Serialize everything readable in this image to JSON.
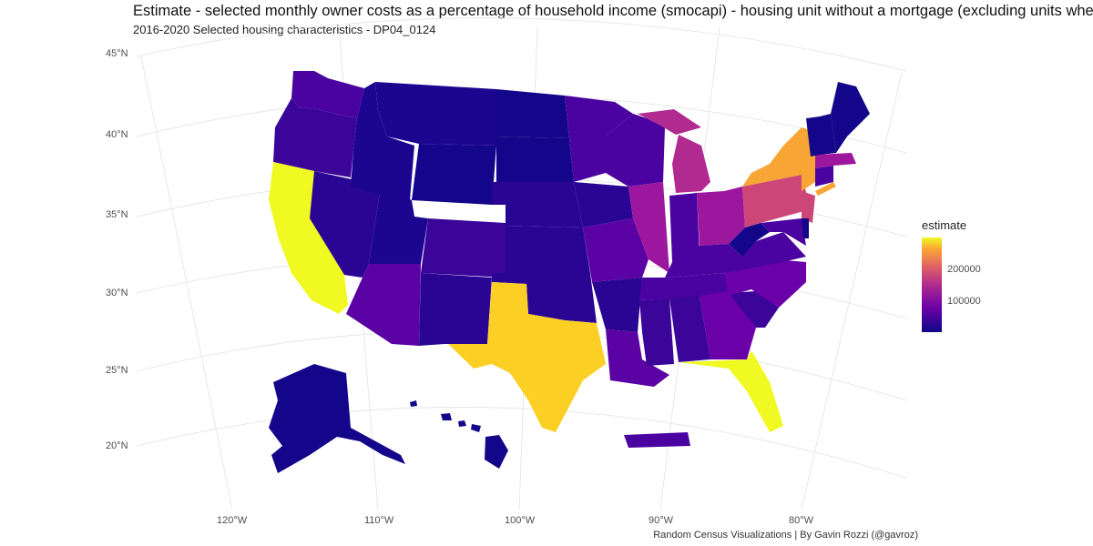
{
  "title": "Estimate - selected monthly owner costs as a percentage of household income (smocapi) - housing unit without a mortgage (excluding units where smo",
  "subtitle": "2016-2020 Selected housing characteristics - DP04_0124",
  "caption": "Random Census Visualizations | By Gavin Rozzi (@gavroz)",
  "axes": {
    "lat_labels": [
      "45°N",
      "40°N",
      "35°N",
      "30°N",
      "25°N",
      "20°N"
    ],
    "lon_labels": [
      "120°W",
      "110°W",
      "100°W",
      "90°W",
      "80°W"
    ]
  },
  "legend": {
    "title": "estimate",
    "ticks": [
      "200000",
      "100000"
    ],
    "colors": {
      "low": "#0d0887",
      "mid": "#b12a90",
      "high": "#f0f921"
    }
  },
  "colors": {
    "navy": "#13068a",
    "indigo": "#2a0593",
    "purple": "#4a03a0",
    "violet": "#6a00a8",
    "magenta": "#9c179e",
    "pink": "#b12a90",
    "rose": "#cc4778",
    "orange": "#f7a534",
    "gold": "#fccf25",
    "yellow": "#f0f921"
  }
}
